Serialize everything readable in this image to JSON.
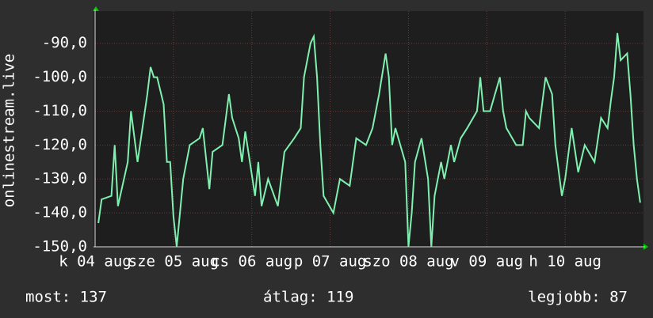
{
  "chart_data": {
    "type": "line",
    "ylabel": "onlinestream.live",
    "x": [
      1,
      2,
      5,
      6,
      7,
      10,
      11,
      13,
      16,
      17,
      18,
      19,
      21,
      22,
      23,
      24,
      25,
      27,
      28,
      29,
      32,
      33,
      35,
      36,
      39,
      41,
      42,
      44,
      45,
      46,
      49,
      50,
      51,
      53,
      56,
      58,
      61,
      63,
      64,
      66,
      67,
      68,
      69,
      70,
      73,
      75,
      78,
      80,
      83,
      85,
      87,
      89,
      90,
      91,
      92,
      95,
      96,
      97,
      98,
      100,
      102,
      103,
      104,
      106,
      107,
      109,
      110,
      112,
      114,
      117,
      118,
      119,
      121,
      124,
      125,
      126,
      129,
      131,
      132,
      133,
      136,
      138,
      140,
      141,
      143,
      144,
      146,
      148,
      150,
      153,
      155,
      157,
      158,
      159,
      160,
      161,
      163,
      164,
      165,
      166,
      167
    ],
    "series": [
      {
        "name": "onlinestream.live",
        "color": "#7ff0b0",
        "values": [
          -143,
          -136,
          -135,
          -120,
          -138,
          -125,
          -110,
          -125,
          -105,
          -97,
          -100,
          -100,
          -108,
          -125,
          -125,
          -141,
          -150,
          -130,
          -125,
          -120,
          -118,
          -115,
          -133,
          -122,
          -120,
          -105,
          -112,
          -118,
          -125,
          -116,
          -135,
          -125,
          -138,
          -130,
          -138,
          -122,
          -118,
          -115,
          -100,
          -90,
          -88,
          -100,
          -120,
          -135,
          -140,
          -130,
          -132,
          -118,
          -120,
          -115,
          -105,
          -93,
          -100,
          -120,
          -115,
          -125,
          -150,
          -140,
          -125,
          -118,
          -130,
          -150,
          -135,
          -125,
          -130,
          -120,
          -125,
          -118,
          -115,
          -110,
          -100,
          -110,
          -110,
          -100,
          -110,
          -115,
          -120,
          -120,
          -110,
          -112,
          -115,
          -100,
          -105,
          -120,
          -135,
          -130,
          -115,
          -128,
          -120,
          -125,
          -112,
          -115,
          -107,
          -100,
          -87,
          -95,
          -93,
          -105,
          -120,
          -130,
          -137
        ]
      }
    ],
    "xlim": [
      0,
      168
    ],
    "xticks": [
      {
        "value": 0,
        "label": "k 04 aug"
      },
      {
        "value": 24,
        "label": "sze 05 aug"
      },
      {
        "value": 48,
        "label": "cs 06 aug"
      },
      {
        "value": 72,
        "label": "p 07 aug"
      },
      {
        "value": 96,
        "label": "szo 08 aug"
      },
      {
        "value": 120,
        "label": "v 09 aug"
      },
      {
        "value": 144,
        "label": "h 10 aug"
      }
    ],
    "ylim": [
      -150,
      -80.5
    ],
    "yticks": [
      {
        "value": -150,
        "label": "-150,0"
      },
      {
        "value": -140,
        "label": "-140,0"
      },
      {
        "value": -130,
        "label": "-130,0"
      },
      {
        "value": -120,
        "label": "-120,0"
      },
      {
        "value": -110,
        "label": "-110,0"
      },
      {
        "value": -100,
        "label": "-100,0"
      },
      {
        "value": -90,
        "label": "-90,0"
      }
    ],
    "grid": true,
    "stats": [
      "most: 137",
      "átlag: 119",
      "legjobb: 87"
    ]
  }
}
